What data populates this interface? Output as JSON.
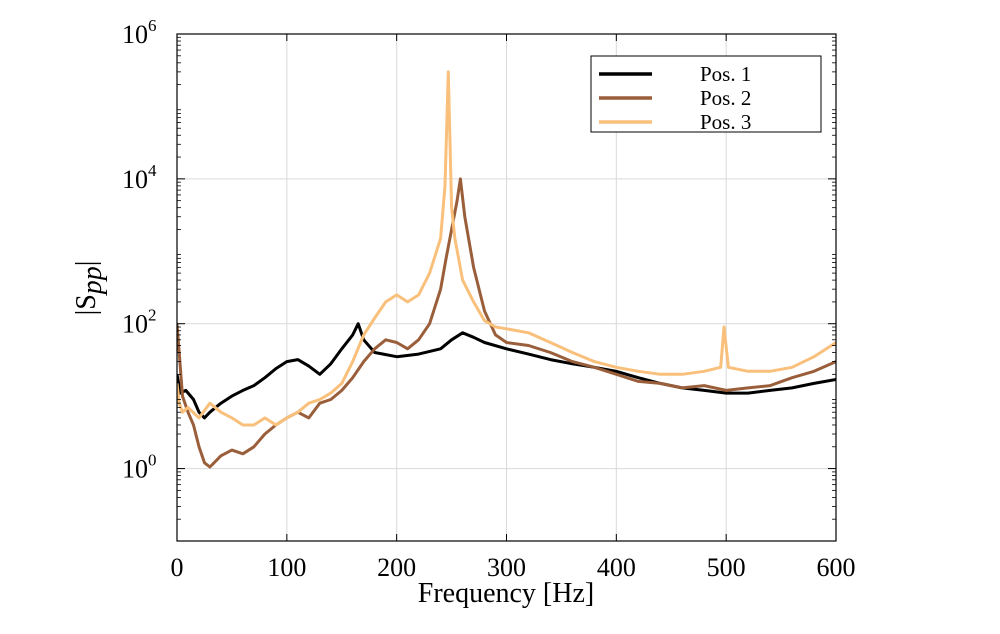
{
  "chart_data": {
    "type": "line",
    "xlabel": "Frequency [Hz]",
    "ylabel": "|S",
    "ylabel_sub": "pp",
    "ylabel_close": "|",
    "xlim": [
      0,
      600
    ],
    "ylim": [
      0.1,
      1000000
    ],
    "yscale": "log",
    "grid": true,
    "legend_position": "top-right",
    "x_ticks": [
      "0",
      "100",
      "200",
      "300",
      "400",
      "500",
      "600"
    ],
    "y_ticks": [
      {
        "base": "10",
        "exp": "0",
        "value": 1
      },
      {
        "base": "10",
        "exp": "2",
        "value": 100
      },
      {
        "base": "10",
        "exp": "4",
        "value": 10000
      },
      {
        "base": "10",
        "exp": "6",
        "value": 1000000
      }
    ],
    "series": [
      {
        "name": "Pos. 1",
        "color": "#000000",
        "points": [
          [
            0,
            20
          ],
          [
            3,
            11
          ],
          [
            8,
            12
          ],
          [
            15,
            9
          ],
          [
            20,
            6
          ],
          [
            25,
            5
          ],
          [
            30,
            6
          ],
          [
            40,
            8
          ],
          [
            50,
            10
          ],
          [
            60,
            12
          ],
          [
            70,
            14
          ],
          [
            80,
            18
          ],
          [
            90,
            24
          ],
          [
            100,
            30
          ],
          [
            110,
            32
          ],
          [
            120,
            26
          ],
          [
            130,
            20
          ],
          [
            140,
            28
          ],
          [
            150,
            45
          ],
          [
            160,
            70
          ],
          [
            165,
            100
          ],
          [
            170,
            60
          ],
          [
            180,
            40
          ],
          [
            200,
            35
          ],
          [
            220,
            38
          ],
          [
            240,
            45
          ],
          [
            250,
            60
          ],
          [
            260,
            75
          ],
          [
            270,
            65
          ],
          [
            280,
            55
          ],
          [
            300,
            45
          ],
          [
            320,
            38
          ],
          [
            340,
            32
          ],
          [
            360,
            28
          ],
          [
            380,
            25
          ],
          [
            400,
            22
          ],
          [
            420,
            18
          ],
          [
            440,
            15
          ],
          [
            460,
            13
          ],
          [
            480,
            12
          ],
          [
            500,
            11
          ],
          [
            520,
            11
          ],
          [
            540,
            12
          ],
          [
            560,
            13
          ],
          [
            580,
            15
          ],
          [
            600,
            17
          ]
        ]
      },
      {
        "name": "Pos. 2",
        "color": "#9a5f3a",
        "points": [
          [
            0,
            100
          ],
          [
            2,
            40
          ],
          [
            5,
            10
          ],
          [
            10,
            6
          ],
          [
            15,
            4
          ],
          [
            20,
            2
          ],
          [
            25,
            1.2
          ],
          [
            30,
            1.05
          ],
          [
            40,
            1.5
          ],
          [
            50,
            1.8
          ],
          [
            60,
            1.6
          ],
          [
            70,
            2
          ],
          [
            80,
            3
          ],
          [
            90,
            4
          ],
          [
            100,
            5
          ],
          [
            110,
            6
          ],
          [
            120,
            5
          ],
          [
            130,
            8
          ],
          [
            140,
            9
          ],
          [
            150,
            12
          ],
          [
            160,
            18
          ],
          [
            170,
            30
          ],
          [
            180,
            45
          ],
          [
            190,
            60
          ],
          [
            200,
            55
          ],
          [
            210,
            45
          ],
          [
            220,
            60
          ],
          [
            230,
            100
          ],
          [
            240,
            300
          ],
          [
            245,
            800
          ],
          [
            250,
            2000
          ],
          [
            255,
            5000
          ],
          [
            258,
            10000
          ],
          [
            262,
            3000
          ],
          [
            270,
            600
          ],
          [
            280,
            150
          ],
          [
            290,
            70
          ],
          [
            300,
            55
          ],
          [
            320,
            50
          ],
          [
            340,
            40
          ],
          [
            360,
            30
          ],
          [
            380,
            25
          ],
          [
            400,
            20
          ],
          [
            420,
            16
          ],
          [
            440,
            15
          ],
          [
            460,
            13
          ],
          [
            480,
            14
          ],
          [
            500,
            12
          ],
          [
            520,
            13
          ],
          [
            540,
            14
          ],
          [
            560,
            18
          ],
          [
            580,
            22
          ],
          [
            600,
            30
          ]
        ]
      },
      {
        "name": "Pos. 3",
        "color": "#f9c07c",
        "points": [
          [
            0,
            15
          ],
          [
            2,
            8
          ],
          [
            5,
            6
          ],
          [
            10,
            7
          ],
          [
            20,
            5
          ],
          [
            30,
            8
          ],
          [
            40,
            6
          ],
          [
            50,
            5
          ],
          [
            60,
            4
          ],
          [
            70,
            4
          ],
          [
            80,
            5
          ],
          [
            90,
            4
          ],
          [
            100,
            5
          ],
          [
            110,
            6
          ],
          [
            120,
            8
          ],
          [
            130,
            9
          ],
          [
            140,
            11
          ],
          [
            150,
            15
          ],
          [
            160,
            30
          ],
          [
            170,
            70
          ],
          [
            180,
            120
          ],
          [
            190,
            200
          ],
          [
            200,
            250
          ],
          [
            210,
            200
          ],
          [
            220,
            250
          ],
          [
            230,
            500
          ],
          [
            240,
            1500
          ],
          [
            244,
            8000
          ],
          [
            247,
            300000
          ],
          [
            250,
            4000
          ],
          [
            253,
            1500
          ],
          [
            260,
            400
          ],
          [
            270,
            200
          ],
          [
            280,
            110
          ],
          [
            290,
            90
          ],
          [
            300,
            85
          ],
          [
            320,
            75
          ],
          [
            340,
            55
          ],
          [
            360,
            40
          ],
          [
            380,
            30
          ],
          [
            400,
            25
          ],
          [
            420,
            22
          ],
          [
            440,
            20
          ],
          [
            460,
            20
          ],
          [
            480,
            22
          ],
          [
            495,
            25
          ],
          [
            498,
            90
          ],
          [
            502,
            25
          ],
          [
            520,
            22
          ],
          [
            540,
            22
          ],
          [
            560,
            25
          ],
          [
            580,
            35
          ],
          [
            600,
            55
          ]
        ]
      }
    ]
  }
}
